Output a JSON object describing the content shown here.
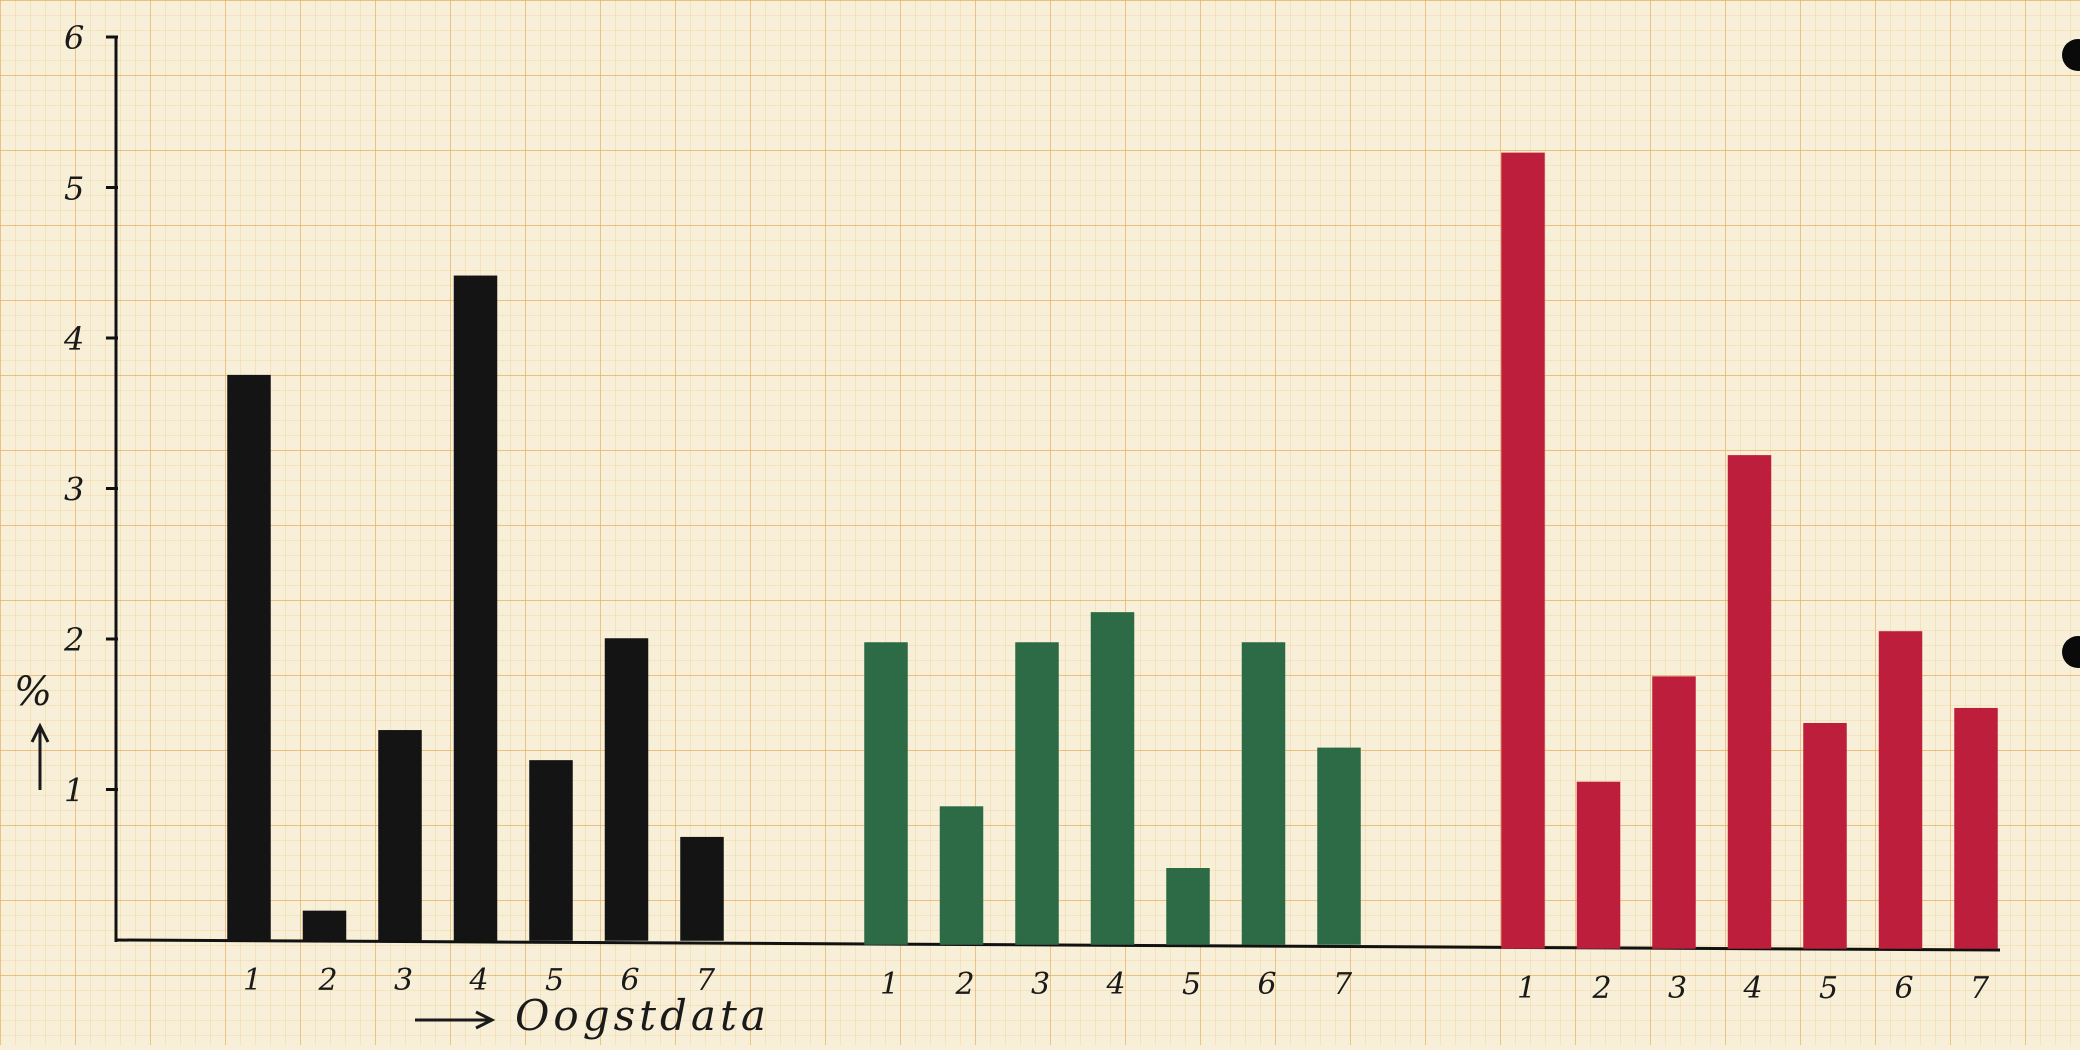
{
  "chart_data": {
    "type": "bar",
    "ylabel": "%",
    "xlabel": "Oogstdata",
    "ylim": [
      0,
      6
    ],
    "yticks": [
      "1",
      "2",
      "3",
      "4",
      "5",
      "6"
    ],
    "grid": true,
    "groups": [
      {
        "color": "#141414",
        "categories": [
          "1",
          "2",
          "3",
          "4",
          "5",
          "6",
          "7"
        ],
        "values": [
          3.75,
          0.19,
          1.39,
          4.41,
          1.19,
          2.0,
          0.68
        ]
      },
      {
        "color": "#2c6b45",
        "categories": [
          "1",
          "2",
          "3",
          "4",
          "5",
          "6",
          "7"
        ],
        "values": [
          2.0,
          0.91,
          2.0,
          2.2,
          0.5,
          2.0,
          1.3
        ]
      },
      {
        "color": "#bd1e3c",
        "categories": [
          "1",
          "2",
          "3",
          "4",
          "5",
          "6",
          "7"
        ],
        "values": [
          5.28,
          1.1,
          1.8,
          3.27,
          1.49,
          2.1,
          1.59
        ]
      }
    ]
  }
}
